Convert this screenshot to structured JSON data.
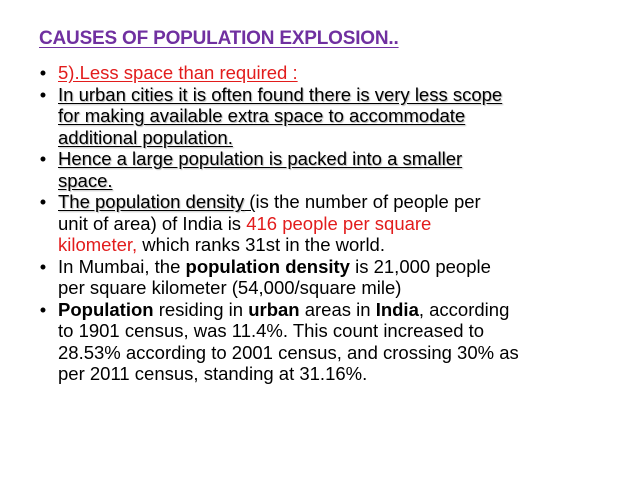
{
  "slide": {
    "title": "CAUSES OF POPULATION EXPLOSION..",
    "bullet_glyph": "•",
    "bullets": {
      "b1": {
        "text": "5).Less space than required :"
      },
      "b2": {
        "line1": "In urban cities it is often found there is very less scope",
        "line2": "for making available extra space to accommodate",
        "line3": "additional population."
      },
      "b3": {
        "line1": "Hence a large population is packed into a smaller",
        "line2": "space."
      },
      "b4": {
        "term": "The population density",
        "paren_open": " (",
        "l1_rest": "is the number of people per",
        "l2_start": "unit of area) of India is ",
        "value": "416 people per square",
        "value2": "kilometer,",
        "l3_rest": " which ranks 31st in the world."
      },
      "b5": {
        "p1": "In Mumbai, the ",
        "term": "population density",
        "p2": " is 21,000 people",
        "line2": "per square kilometer (54,000/square mile)"
      },
      "b6": {
        "w1": "Population",
        "p1": " residing in ",
        "w2": "urban",
        "p2": " areas in ",
        "w3": "India",
        "p3": ", according",
        "line2": "to 1901 census, was 11.4%. This count increased to",
        "line3": "28.53% according to 2001 census, and crossing 30% as",
        "line4": "per 2011 census, standing at 31.16%."
      }
    }
  }
}
